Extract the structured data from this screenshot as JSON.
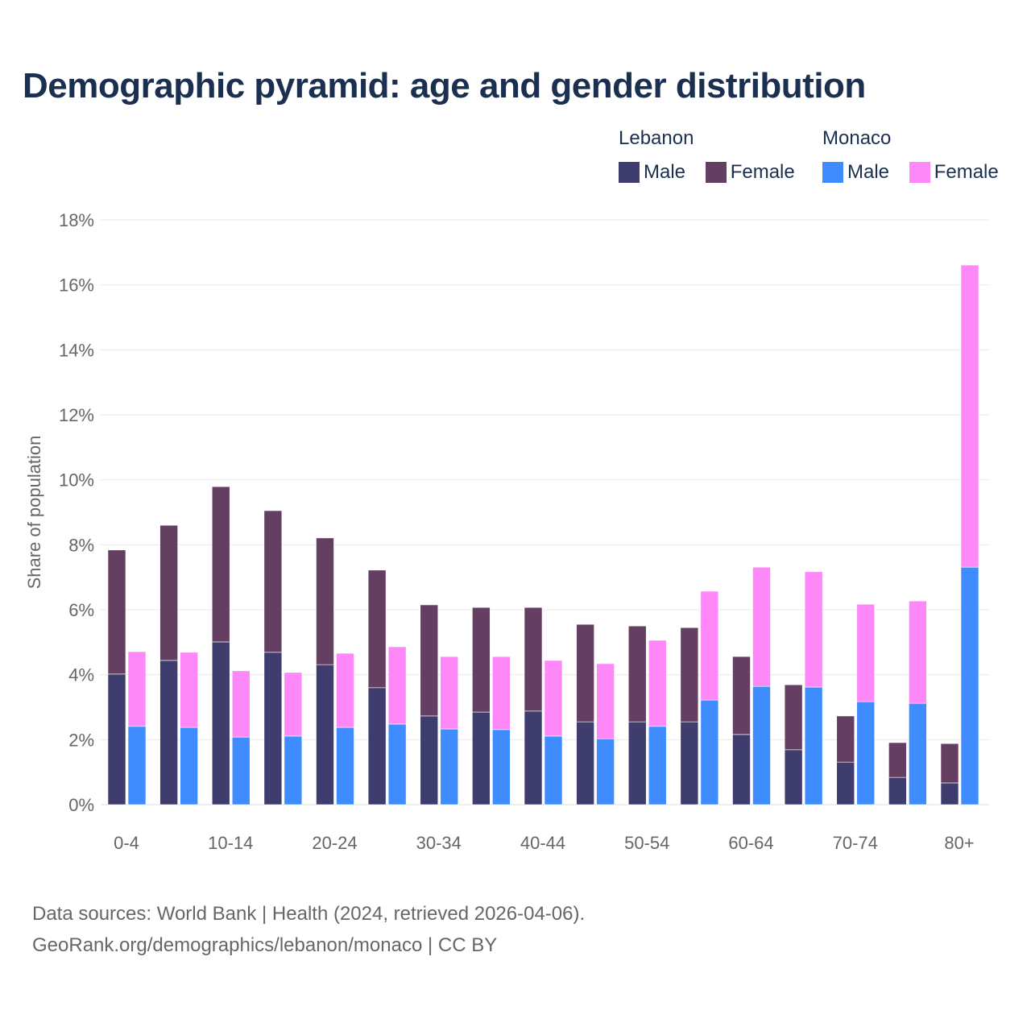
{
  "chart_data": {
    "type": "bar",
    "title": "Demographic pyramid: age and gender distribution",
    "ylabel": "Share of population",
    "xlabel": "",
    "ylim": [
      0,
      18
    ],
    "yticks": [
      "0%",
      "2%",
      "4%",
      "6%",
      "8%",
      "10%",
      "12%",
      "14%",
      "16%",
      "18%"
    ],
    "ytick_values": [
      0,
      2,
      4,
      6,
      8,
      10,
      12,
      14,
      16,
      18
    ],
    "grid": true,
    "stacked": true,
    "legend_position": "top-right",
    "categories": [
      "0-4",
      "5-9",
      "10-14",
      "15-19",
      "20-24",
      "25-29",
      "30-34",
      "35-39",
      "40-44",
      "45-49",
      "50-54",
      "55-59",
      "60-64",
      "65-69",
      "70-74",
      "75-79",
      "80+"
    ],
    "xtick_labels": [
      "0-4",
      "10-14",
      "20-24",
      "30-34",
      "40-44",
      "50-54",
      "60-64",
      "70-74",
      "80+"
    ],
    "countries": [
      {
        "name": "Lebanon",
        "series": [
          {
            "name": "Male",
            "color": "#3f3d6e",
            "values": [
              4.02,
              4.44,
              5.01,
              4.69,
              4.31,
              3.6,
              2.73,
              2.85,
              2.88,
              2.55,
              2.55,
              2.55,
              2.16,
              1.69,
              1.31,
              0.84,
              0.67
            ]
          },
          {
            "name": "Female",
            "color": "#653f62",
            "values": [
              3.82,
              4.16,
              4.78,
              4.36,
              3.9,
              3.62,
              3.42,
              3.22,
              3.19,
              3.0,
              2.95,
              2.9,
              2.4,
              2.0,
              1.42,
              1.07,
              1.21
            ]
          }
        ]
      },
      {
        "name": "Monaco",
        "series": [
          {
            "name": "Male",
            "color": "#3f8cff",
            "values": [
              2.41,
              2.38,
              2.08,
              2.11,
              2.38,
              2.48,
              2.33,
              2.31,
              2.11,
              2.03,
              2.41,
              3.22,
              3.64,
              3.62,
              3.17,
              3.12,
              7.31
            ]
          },
          {
            "name": "Female",
            "color": "#ff88f8",
            "values": [
              2.3,
              2.31,
              2.04,
              1.96,
              2.28,
              2.38,
              2.23,
              2.25,
              2.33,
              2.31,
              2.65,
              3.35,
              3.67,
              3.55,
              3.0,
              3.15,
              9.3
            ]
          }
        ]
      }
    ]
  },
  "footer": {
    "line1": "Data sources: World Bank | Health (2024, retrieved 2026-04-06).",
    "line2": "GeoRank.org/demographics/lebanon/monaco | CC BY"
  }
}
